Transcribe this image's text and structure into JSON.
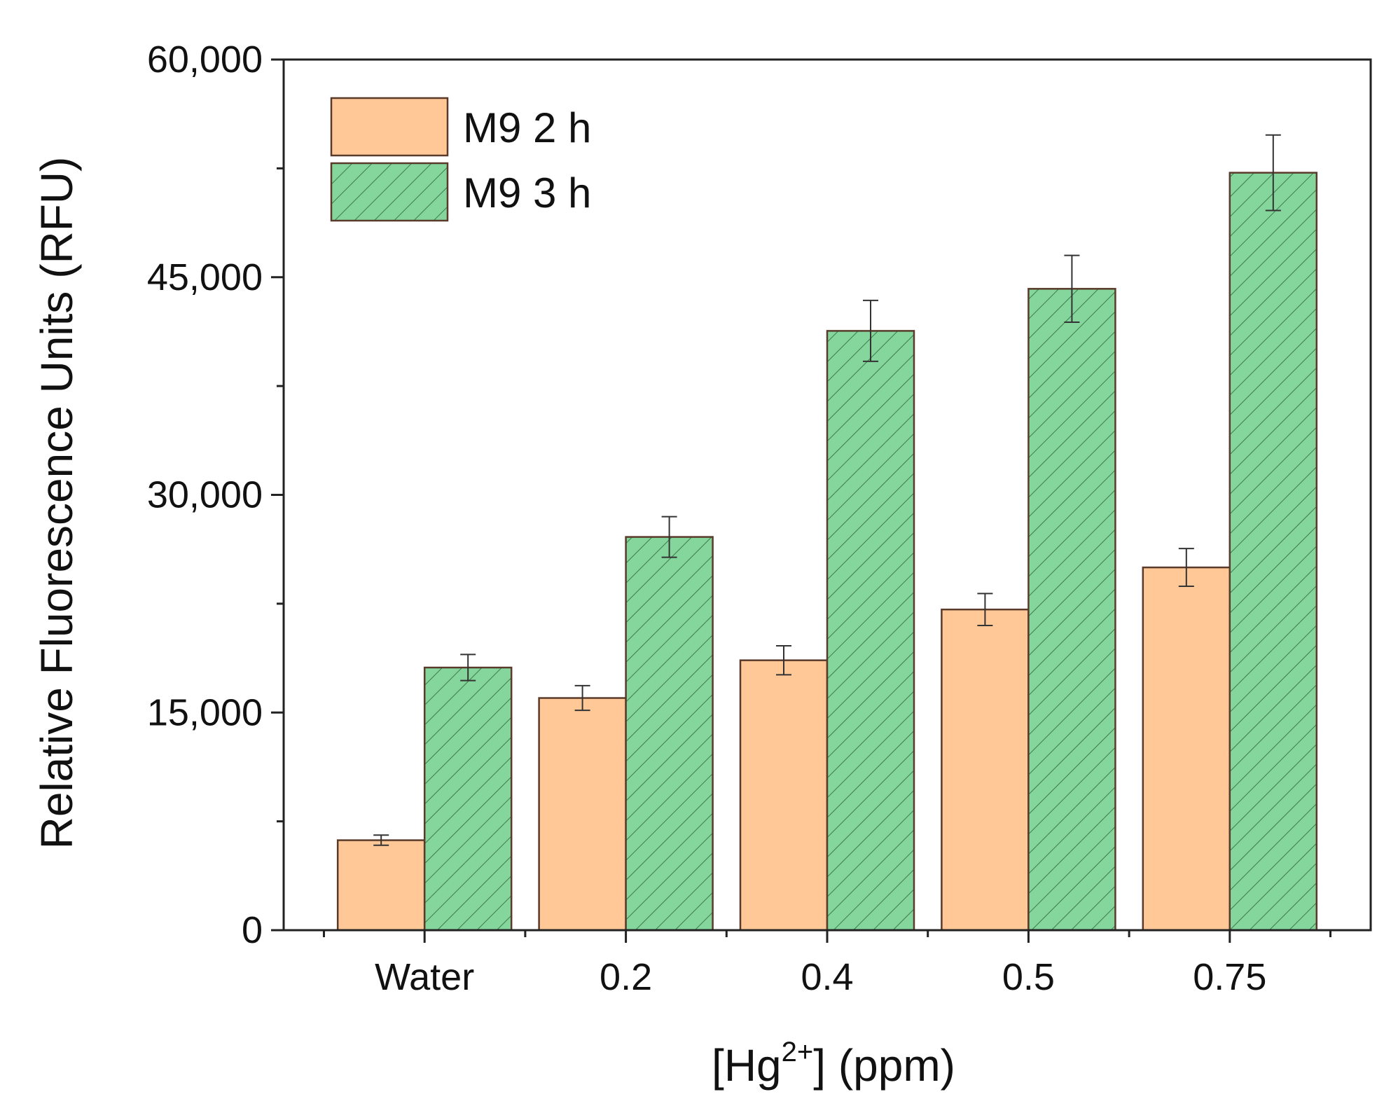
{
  "chart_data": {
    "type": "bar",
    "title": "",
    "xlabel_prefix": "[Hg",
    "xlabel_superscript": "2+",
    "xlabel_suffix": "] (ppm)",
    "ylabel": "Relative Fluorescence Units (RFU)",
    "categories": [
      "Water",
      "0.2",
      "0.4",
      "0.5",
      "0.75"
    ],
    "ylim": [
      0,
      60000
    ],
    "yticks": [
      0,
      15000,
      30000,
      45000,
      60000
    ],
    "ytick_labels": [
      "0",
      "15,000",
      "30,000",
      "45,000",
      "60,000"
    ],
    "grid": false,
    "legend_position": "top-left",
    "series": [
      {
        "name": "M9 2 h",
        "values": [
          6200,
          16000,
          18600,
          22100,
          25000
        ],
        "errors": [
          350,
          850,
          1000,
          1100,
          1300
        ],
        "color": "#ffc896",
        "pattern": "solid"
      },
      {
        "name": "M9 3 h",
        "values": [
          18100,
          27100,
          41300,
          44200,
          52200
        ],
        "errors": [
          900,
          1400,
          2100,
          2300,
          2600
        ],
        "color": "#84d69c",
        "pattern": "hatch"
      }
    ],
    "colors": {
      "axis": "#222222",
      "bar_edge": "#5a3a2a",
      "hatch": "#3f7a4c"
    }
  }
}
